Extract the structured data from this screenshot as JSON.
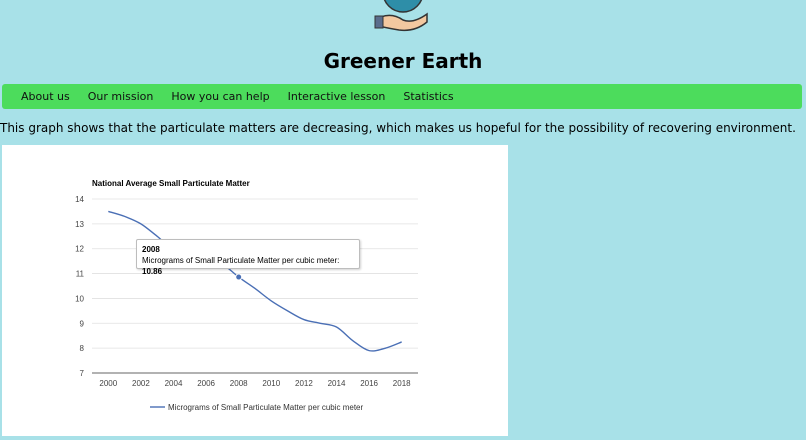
{
  "header": {
    "site_title": "Greener Earth",
    "logo_icon": "globe-in-hand-icon"
  },
  "nav": {
    "items": [
      {
        "label": "About us"
      },
      {
        "label": "Our mission"
      },
      {
        "label": "How you can help"
      },
      {
        "label": "Interactive lesson"
      },
      {
        "label": "Statistics"
      }
    ]
  },
  "main": {
    "intro_text": "This graph shows that the particulate matters are decreasing, which makes us hopeful for the possibility of recovering environment."
  },
  "tooltip": {
    "year": "2008",
    "label": "Micrograms of Small Particulate Matter per cubic meter:",
    "value": "10.86"
  },
  "colors": {
    "background": "#a8e1e8",
    "nav": "#4cdc5c",
    "line": "#4a6fb5"
  },
  "chart_data": {
    "type": "line",
    "title": "National Average Small Particulate Matter",
    "xlabel": "",
    "ylabel": "",
    "x": [
      2000,
      2001,
      2002,
      2003,
      2004,
      2005,
      2006,
      2007,
      2008,
      2009,
      2010,
      2011,
      2012,
      2013,
      2014,
      2015,
      2016,
      2017,
      2018
    ],
    "series": [
      {
        "name": "Micrograms of Small Particulate Matter per cubic meter",
        "values": [
          13.5,
          13.3,
          13.0,
          12.5,
          12.0,
          12.3,
          11.8,
          11.4,
          10.86,
          10.4,
          9.9,
          9.5,
          9.15,
          9.0,
          8.85,
          8.3,
          7.9,
          8.0,
          8.25
        ]
      }
    ],
    "xticks": [
      "2000",
      "2002",
      "2004",
      "2006",
      "2008",
      "2010",
      "2012",
      "2014",
      "2016",
      "2018"
    ],
    "yticks": [
      "7",
      "8",
      "9",
      "10",
      "11",
      "12",
      "13",
      "14"
    ],
    "xlim": [
      1999,
      2019
    ],
    "ylim": [
      7,
      14
    ],
    "grid": true,
    "legend_position": "bottom",
    "highlighted_x": 2008
  }
}
